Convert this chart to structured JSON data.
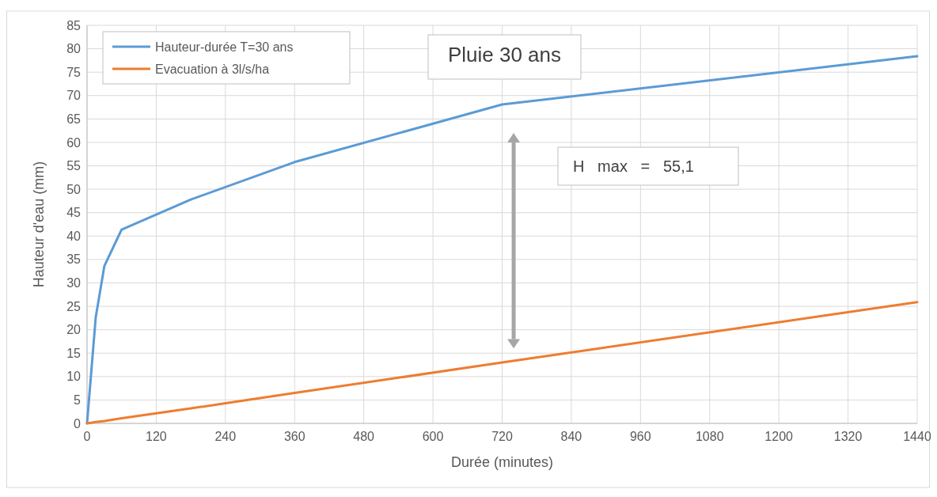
{
  "chart_data": {
    "type": "line",
    "title": "Pluie 30 ans",
    "xlabel": "Durée (minutes)",
    "ylabel": "Hauteur d'eau (mm)",
    "x": [
      0,
      15,
      30,
      60,
      180,
      360,
      720,
      1440
    ],
    "series": [
      {
        "name": "Hauteur-durée T=30 ans",
        "color": "#5b9bd5",
        "values": [
          0,
          22.6,
          33.6,
          41.4,
          47.8,
          55.8,
          68.1,
          78.4
        ]
      },
      {
        "name": "Evacuation à 3l/s/ha",
        "color": "#ed7d31",
        "values": [
          0,
          0.3,
          0.5,
          1.1,
          3.2,
          6.5,
          13.0,
          25.9
        ]
      }
    ],
    "xlim": [
      0,
      1440
    ],
    "xticks": [
      0,
      120,
      240,
      360,
      480,
      600,
      720,
      840,
      960,
      1080,
      1200,
      1320,
      1440
    ],
    "ylim": [
      0,
      85
    ],
    "yticks": [
      0,
      5,
      10,
      15,
      20,
      25,
      30,
      35,
      40,
      45,
      50,
      55,
      60,
      65,
      70,
      75,
      80,
      85
    ],
    "annotations": [
      "H   max   =   55,1"
    ],
    "grid": true,
    "legend": "top left",
    "marker": "none",
    "line_style": "solid"
  }
}
